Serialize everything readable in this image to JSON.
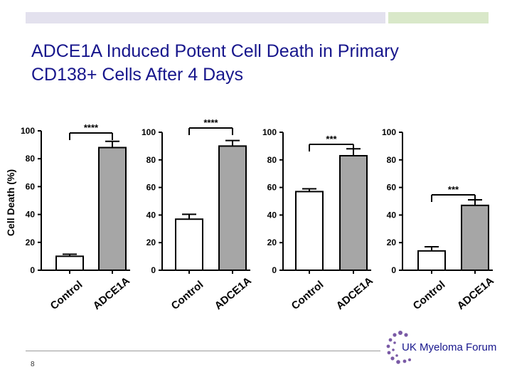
{
  "slide": {
    "title_line1": "ADCE1A Induced Potent Cell Death in Primary",
    "title_line2": "CD138+ Cells  After 4 Days",
    "page_number": "8",
    "logo_text": "UK Myeloma Forum"
  },
  "colors": {
    "title": "#17168c",
    "control_bar": "#ffffff",
    "adce1a_bar": "#a6a6a6",
    "header_lavender": "#e3e1ee",
    "header_green": "#d9e8c9"
  },
  "chart_data": [
    {
      "type": "bar",
      "panel": 1,
      "categories": [
        "Control",
        "ADCE1A"
      ],
      "values": [
        10,
        88
      ],
      "errors": [
        1.5,
        4.5
      ],
      "ylabel": "Cell Death (%)",
      "ylim": [
        0,
        100
      ],
      "yticks": [
        "0",
        "20",
        "40",
        "60",
        "80",
        "100"
      ],
      "significance": "****"
    },
    {
      "type": "bar",
      "panel": 2,
      "categories": [
        "Control",
        "ADCE1A"
      ],
      "values": [
        37,
        90
      ],
      "errors": [
        3.5,
        4
      ],
      "ylabel": "",
      "ylim": [
        0,
        100
      ],
      "yticks": [
        "0",
        "20",
        "40",
        "60",
        "80",
        "100"
      ],
      "significance": "****"
    },
    {
      "type": "bar",
      "panel": 3,
      "categories": [
        "Control",
        "ADCE1A"
      ],
      "values": [
        57,
        83
      ],
      "errors": [
        2,
        5
      ],
      "ylabel": "",
      "ylim": [
        0,
        100
      ],
      "yticks": [
        "0",
        "20",
        "40",
        "60",
        "80",
        "100"
      ],
      "significance": "***"
    },
    {
      "type": "bar",
      "panel": 4,
      "categories": [
        "Control",
        "ADCE1A"
      ],
      "values": [
        14,
        47
      ],
      "errors": [
        3,
        4
      ],
      "ylabel": "",
      "ylim": [
        0,
        100
      ],
      "yticks": [
        "0",
        "20",
        "40",
        "60",
        "80",
        "100"
      ],
      "significance": "***"
    }
  ]
}
